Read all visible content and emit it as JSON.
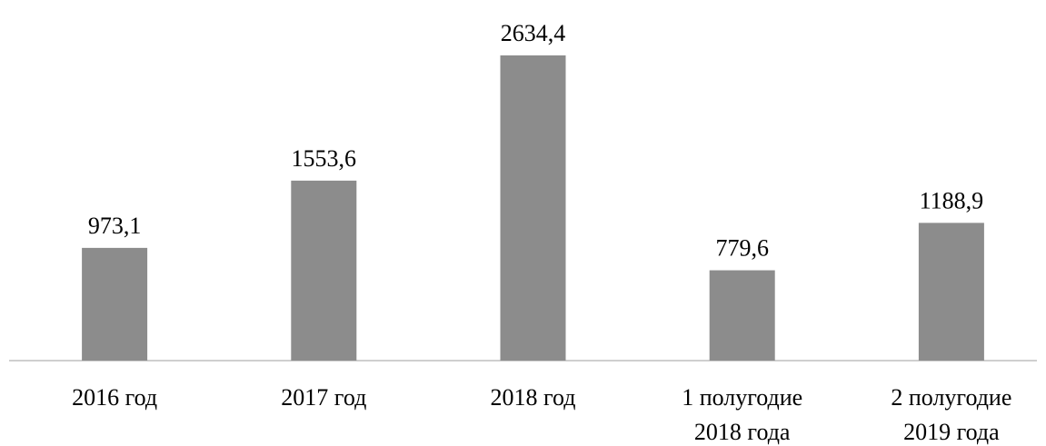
{
  "chart_data": {
    "type": "bar",
    "categories": [
      "2016 год",
      "2017 год",
      "2018 год",
      "1 полугодие\n2018 года",
      "2 полугодие\n2019 года"
    ],
    "values": [
      973.1,
      1553.6,
      2634.4,
      779.6,
      1188.9
    ],
    "value_labels": [
      "973,1",
      "1553,6",
      "2634,4",
      "779,6",
      "1188,9"
    ],
    "color": "#8c8c8c"
  }
}
